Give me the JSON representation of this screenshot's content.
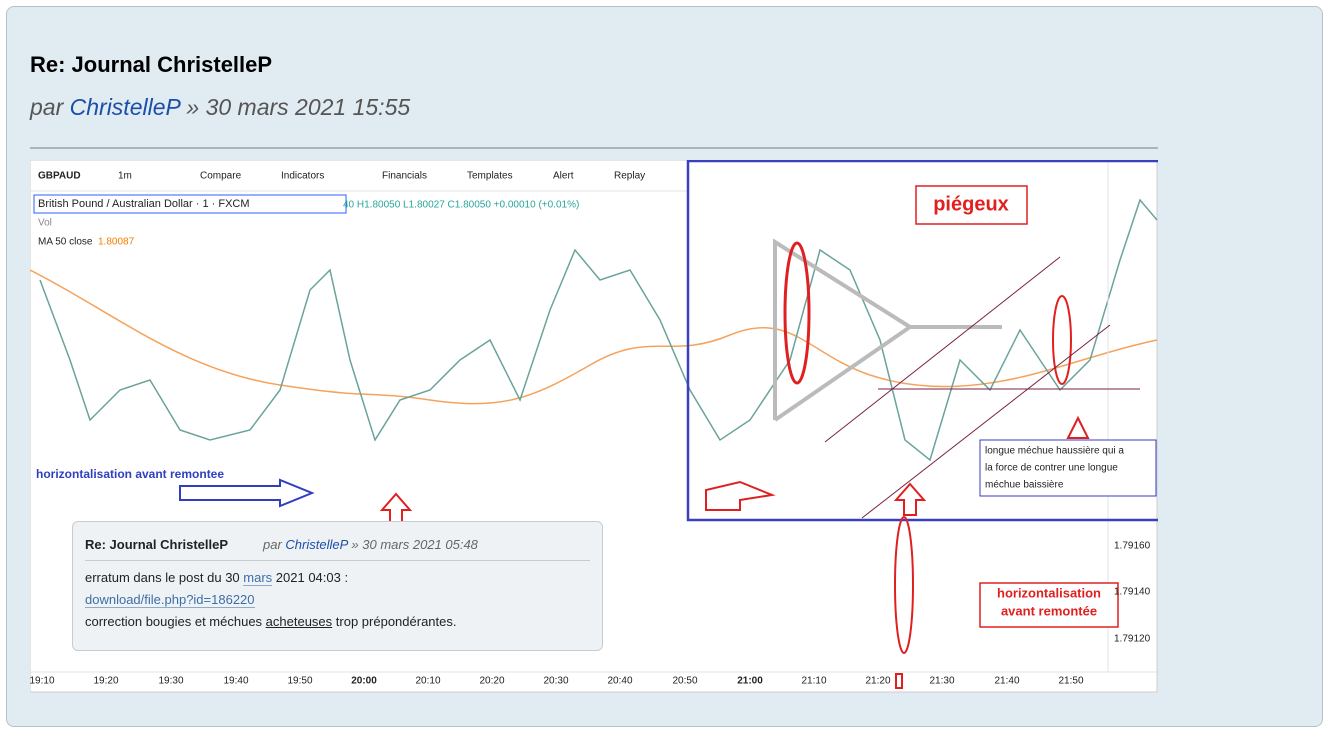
{
  "post": {
    "title": "Re: Journal ChristelleP",
    "by": "par",
    "author": "ChristelleP",
    "date": "» 30 mars 2021 15:55"
  },
  "chart_image": {
    "toolbar": [
      "GBPAUD",
      "1m",
      "Compare",
      "Indicators",
      "Financials",
      "Templates",
      "Alert",
      "Replay"
    ],
    "symbol": "British Pound / Australian Dollar · 1 · FXCM",
    "ohlc": "40 H1.80050 L1.80027 C1.80050 +0.00010 (+0.01%)",
    "vol": "Vol",
    "ma_label": "MA 50 close",
    "ma_value": "1.80087",
    "x_labels": [
      "19:10",
      "19:20",
      "19:30",
      "19:40",
      "19:50",
      "20:00",
      "20:10",
      "20:20",
      "20:30",
      "20:40",
      "20:50",
      "21:00",
      "21:10",
      "21:20",
      "21:30",
      "21:40",
      "21:50"
    ],
    "price_labels": [
      "1.79160",
      "1.79140",
      "1.79120"
    ],
    "annotations": {
      "left_note": "horizontalisation avant remontee",
      "trap": "piégeux",
      "wick_note": [
        "longue méchue haussière qui a",
        "la force de contrer une longue",
        "méchue baissière"
      ],
      "right_note": [
        "horizontalisation",
        "avant remontée"
      ]
    }
  },
  "quote": {
    "title": "Re: Journal ChristelleP",
    "by": "par",
    "author": "ChristelleP",
    "date": "» 30 mars 2021 05:48",
    "line1_start": "erratum dans le post du 30",
    "line1_link": "mars",
    "line1_end": "2021 04:03 :",
    "link": "download/file.php?id=186220",
    "line3_start": "correction bougies et méchues",
    "line3_underlined": "acheteuses",
    "line3_end": "trop prépondérantes."
  }
}
